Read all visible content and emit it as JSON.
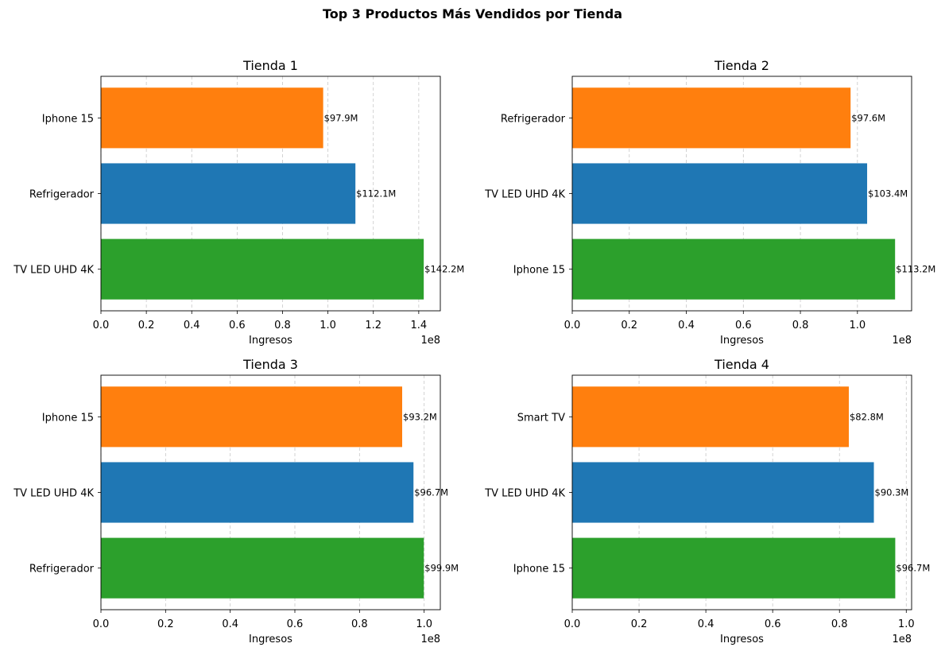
{
  "figure": {
    "suptitle": "Top 3 Productos Más Vendidos por Tienda"
  },
  "chart_data": [
    {
      "type": "bar",
      "orientation": "horizontal",
      "title": "Tienda 1",
      "xlabel": "Ingresos",
      "ylabel": "",
      "offset_label": "1e8",
      "xlim": [
        0,
        149500000
      ],
      "xticks": [
        0,
        20000000,
        40000000,
        60000000,
        80000000,
        100000000,
        120000000,
        140000000
      ],
      "xtick_labels": [
        "0.0",
        "0.2",
        "0.4",
        "0.6",
        "0.8",
        "1.0",
        "1.2",
        "1.4"
      ],
      "grid": "x-dashed",
      "categories": [
        "TV LED UHD 4K",
        "Refrigerador",
        "Iphone 15"
      ],
      "values": [
        142200000,
        112100000,
        97900000
      ],
      "value_labels": [
        "$142.2M",
        "$112.1M",
        "$97.9M"
      ],
      "colors": [
        "#2ca02c",
        "#1f77b4",
        "#ff7f0e"
      ]
    },
    {
      "type": "bar",
      "orientation": "horizontal",
      "title": "Tienda 2",
      "xlabel": "Ingresos",
      "ylabel": "",
      "offset_label": "1e8",
      "xlim": [
        0,
        119000000
      ],
      "xticks": [
        0,
        20000000,
        40000000,
        60000000,
        80000000,
        100000000
      ],
      "xtick_labels": [
        "0.0",
        "0.2",
        "0.4",
        "0.6",
        "0.8",
        "1.0"
      ],
      "grid": "x-dashed",
      "categories": [
        "Iphone 15",
        "TV LED UHD 4K",
        "Refrigerador"
      ],
      "values": [
        113200000,
        103400000,
        97600000
      ],
      "value_labels": [
        "$113.2M",
        "$103.4M",
        "$97.6M"
      ],
      "colors": [
        "#2ca02c",
        "#1f77b4",
        "#ff7f0e"
      ]
    },
    {
      "type": "bar",
      "orientation": "horizontal",
      "title": "Tienda 3",
      "xlabel": "Ingresos",
      "ylabel": "",
      "offset_label": "1e8",
      "xlim": [
        0,
        105000000
      ],
      "xticks": [
        0,
        20000000,
        40000000,
        60000000,
        80000000,
        100000000
      ],
      "xtick_labels": [
        "0.0",
        "0.2",
        "0.4",
        "0.6",
        "0.8",
        "1.0"
      ],
      "grid": "x-dashed",
      "categories": [
        "Refrigerador",
        "TV LED UHD 4K",
        "Iphone 15"
      ],
      "values": [
        99900000,
        96700000,
        93200000
      ],
      "value_labels": [
        "$99.9M",
        "$96.7M",
        "$93.2M"
      ],
      "colors": [
        "#2ca02c",
        "#1f77b4",
        "#ff7f0e"
      ]
    },
    {
      "type": "bar",
      "orientation": "horizontal",
      "title": "Tienda 4",
      "xlabel": "Ingresos",
      "ylabel": "",
      "offset_label": "1e8",
      "xlim": [
        0,
        101600000
      ],
      "xticks": [
        0,
        20000000,
        40000000,
        60000000,
        80000000,
        100000000
      ],
      "xtick_labels": [
        "0.0",
        "0.2",
        "0.4",
        "0.6",
        "0.8",
        "1.0"
      ],
      "grid": "x-dashed",
      "categories": [
        "Iphone 15",
        "TV LED UHD 4K",
        "Smart TV"
      ],
      "values": [
        96700000,
        90300000,
        82800000
      ],
      "value_labels": [
        "$96.7M",
        "$90.3M",
        "$82.8M"
      ],
      "colors": [
        "#2ca02c",
        "#1f77b4",
        "#ff7f0e"
      ]
    }
  ]
}
